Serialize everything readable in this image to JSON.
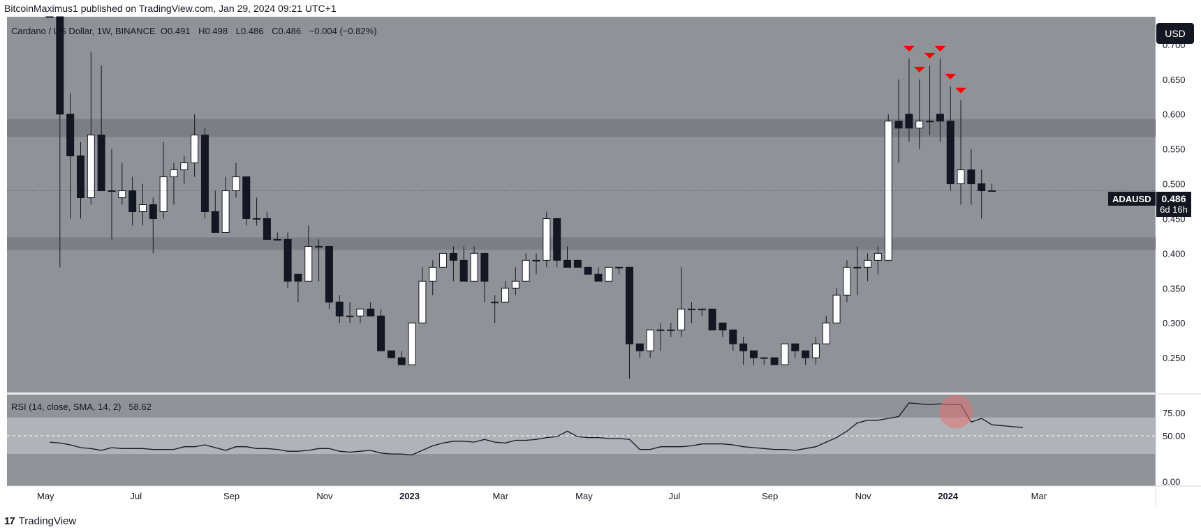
{
  "header": {
    "published_by": "BitcoinMaximus1 published on TradingView.com, Jan 29, 2024 09:21 UTC+1"
  },
  "legend": {
    "symbol": "Cardano / US Dollar, 1W, BINANCE",
    "o_label": "O",
    "o": "0.491",
    "h_label": "H",
    "h": "0.498",
    "l_label": "L",
    "l": "0.486",
    "c_label": "C",
    "c": "0.486",
    "change": "−0.004 (−0.82%)"
  },
  "rsi_legend": {
    "label": "RSI (14, close, SMA, 14, 2)",
    "value": "58.62"
  },
  "currency": "USD",
  "ticker": "ADAUSD",
  "last_price": "0.486",
  "countdown": "6d 16h",
  "footer": {
    "brand": "TradingView",
    "logo": "17"
  },
  "colors": {
    "background": "#ffffff",
    "plot_bg": "#8f9297",
    "zone": "#7b7e84",
    "bull": "#ffffff",
    "bear": "#131722",
    "marker": "#ff0000",
    "rsi_line": "#131722",
    "rsi_band": "#b0b3b8"
  },
  "chart_data": [
    {
      "type": "candlestick",
      "title": "Cardano / US Dollar, 1W, BINANCE",
      "ylabel": "USD",
      "ylim": [
        0.2,
        0.74
      ],
      "y_ticks": [
        0.25,
        0.3,
        0.35,
        0.4,
        0.45,
        0.5,
        0.55,
        0.6,
        0.65,
        0.7
      ],
      "y_tick_labels": [
        "0.250",
        "0.300",
        "0.350",
        "0.400",
        "0.450",
        "0.500",
        "0.550",
        "0.600",
        "0.650",
        "0.700"
      ],
      "x_tick_labels": [
        "May",
        "Jul",
        "Sep",
        "Nov",
        "2023",
        "Mar",
        "May",
        "Jul",
        "Sep",
        "Nov",
        "2024",
        "Mar"
      ],
      "x_tick_weeks": [
        0,
        9,
        18,
        27,
        35,
        44,
        52,
        61,
        70,
        79,
        87,
        96
      ],
      "horizontal_zones": [
        [
          0.567,
          0.593
        ],
        [
          0.405,
          0.423
        ]
      ],
      "bearish_markers_weeks": [
        83,
        84,
        85,
        86,
        87,
        88
      ],
      "candles": [
        {
          "o": 0.81,
          "h": 0.86,
          "l": 0.74,
          "c": 0.75
        },
        {
          "o": 0.75,
          "h": 0.79,
          "l": 0.38,
          "c": 0.6
        },
        {
          "o": 0.6,
          "h": 0.63,
          "l": 0.45,
          "c": 0.54
        },
        {
          "o": 0.54,
          "h": 0.56,
          "l": 0.45,
          "c": 0.48
        },
        {
          "o": 0.48,
          "h": 0.69,
          "l": 0.47,
          "c": 0.57
        },
        {
          "o": 0.57,
          "h": 0.67,
          "l": 0.49,
          "c": 0.49
        },
        {
          "o": 0.49,
          "h": 0.55,
          "l": 0.42,
          "c": 0.49
        },
        {
          "o": 0.48,
          "h": 0.53,
          "l": 0.47,
          "c": 0.49
        },
        {
          "o": 0.49,
          "h": 0.51,
          "l": 0.44,
          "c": 0.46
        },
        {
          "o": 0.46,
          "h": 0.5,
          "l": 0.44,
          "c": 0.47
        },
        {
          "o": 0.47,
          "h": 0.48,
          "l": 0.4,
          "c": 0.45
        },
        {
          "o": 0.46,
          "h": 0.56,
          "l": 0.45,
          "c": 0.51
        },
        {
          "o": 0.51,
          "h": 0.53,
          "l": 0.47,
          "c": 0.52
        },
        {
          "o": 0.52,
          "h": 0.54,
          "l": 0.5,
          "c": 0.53
        },
        {
          "o": 0.53,
          "h": 0.6,
          "l": 0.51,
          "c": 0.57
        },
        {
          "o": 0.57,
          "h": 0.58,
          "l": 0.45,
          "c": 0.46
        },
        {
          "o": 0.46,
          "h": 0.49,
          "l": 0.43,
          "c": 0.43
        },
        {
          "o": 0.43,
          "h": 0.51,
          "l": 0.43,
          "c": 0.49
        },
        {
          "o": 0.49,
          "h": 0.53,
          "l": 0.48,
          "c": 0.51
        },
        {
          "o": 0.51,
          "h": 0.51,
          "l": 0.44,
          "c": 0.45
        },
        {
          "o": 0.45,
          "h": 0.48,
          "l": 0.44,
          "c": 0.45
        },
        {
          "o": 0.45,
          "h": 0.46,
          "l": 0.42,
          "c": 0.42
        },
        {
          "o": 0.42,
          "h": 0.43,
          "l": 0.42,
          "c": 0.42
        },
        {
          "o": 0.42,
          "h": 0.43,
          "l": 0.35,
          "c": 0.36
        },
        {
          "o": 0.37,
          "h": 0.37,
          "l": 0.33,
          "c": 0.36
        },
        {
          "o": 0.36,
          "h": 0.44,
          "l": 0.36,
          "c": 0.41
        },
        {
          "o": 0.41,
          "h": 0.42,
          "l": 0.36,
          "c": 0.41
        },
        {
          "o": 0.41,
          "h": 0.41,
          "l": 0.32,
          "c": 0.33
        },
        {
          "o": 0.33,
          "h": 0.34,
          "l": 0.3,
          "c": 0.31
        },
        {
          "o": 0.31,
          "h": 0.33,
          "l": 0.3,
          "c": 0.31
        },
        {
          "o": 0.31,
          "h": 0.32,
          "l": 0.3,
          "c": 0.32
        },
        {
          "o": 0.32,
          "h": 0.33,
          "l": 0.31,
          "c": 0.31
        },
        {
          "o": 0.31,
          "h": 0.32,
          "l": 0.26,
          "c": 0.26
        },
        {
          "o": 0.26,
          "h": 0.26,
          "l": 0.25,
          "c": 0.25
        },
        {
          "o": 0.25,
          "h": 0.26,
          "l": 0.24,
          "c": 0.24
        },
        {
          "o": 0.24,
          "h": 0.3,
          "l": 0.24,
          "c": 0.3
        },
        {
          "o": 0.3,
          "h": 0.38,
          "l": 0.3,
          "c": 0.36
        },
        {
          "o": 0.36,
          "h": 0.39,
          "l": 0.34,
          "c": 0.38
        },
        {
          "o": 0.38,
          "h": 0.4,
          "l": 0.38,
          "c": 0.4
        },
        {
          "o": 0.4,
          "h": 0.41,
          "l": 0.36,
          "c": 0.39
        },
        {
          "o": 0.39,
          "h": 0.41,
          "l": 0.36,
          "c": 0.36
        },
        {
          "o": 0.36,
          "h": 0.41,
          "l": 0.36,
          "c": 0.4
        },
        {
          "o": 0.4,
          "h": 0.4,
          "l": 0.33,
          "c": 0.36
        },
        {
          "o": 0.33,
          "h": 0.34,
          "l": 0.3,
          "c": 0.33
        },
        {
          "o": 0.33,
          "h": 0.36,
          "l": 0.33,
          "c": 0.35
        },
        {
          "o": 0.35,
          "h": 0.38,
          "l": 0.34,
          "c": 0.36
        },
        {
          "o": 0.36,
          "h": 0.4,
          "l": 0.36,
          "c": 0.39
        },
        {
          "o": 0.39,
          "h": 0.4,
          "l": 0.37,
          "c": 0.39
        },
        {
          "o": 0.39,
          "h": 0.46,
          "l": 0.38,
          "c": 0.45
        },
        {
          "o": 0.45,
          "h": 0.45,
          "l": 0.38,
          "c": 0.39
        },
        {
          "o": 0.39,
          "h": 0.41,
          "l": 0.38,
          "c": 0.38
        },
        {
          "o": 0.39,
          "h": 0.39,
          "l": 0.38,
          "c": 0.38
        },
        {
          "o": 0.38,
          "h": 0.38,
          "l": 0.37,
          "c": 0.37
        },
        {
          "o": 0.37,
          "h": 0.38,
          "l": 0.36,
          "c": 0.36
        },
        {
          "o": 0.36,
          "h": 0.38,
          "l": 0.36,
          "c": 0.38
        },
        {
          "o": 0.38,
          "h": 0.38,
          "l": 0.37,
          "c": 0.38
        },
        {
          "o": 0.38,
          "h": 0.38,
          "l": 0.22,
          "c": 0.27
        },
        {
          "o": 0.27,
          "h": 0.27,
          "l": 0.25,
          "c": 0.26
        },
        {
          "o": 0.26,
          "h": 0.29,
          "l": 0.25,
          "c": 0.29
        },
        {
          "o": 0.29,
          "h": 0.3,
          "l": 0.26,
          "c": 0.29
        },
        {
          "o": 0.29,
          "h": 0.3,
          "l": 0.28,
          "c": 0.29
        },
        {
          "o": 0.29,
          "h": 0.38,
          "l": 0.28,
          "c": 0.32
        },
        {
          "o": 0.32,
          "h": 0.33,
          "l": 0.3,
          "c": 0.32
        },
        {
          "o": 0.32,
          "h": 0.32,
          "l": 0.31,
          "c": 0.32
        },
        {
          "o": 0.32,
          "h": 0.32,
          "l": 0.29,
          "c": 0.29
        },
        {
          "o": 0.3,
          "h": 0.3,
          "l": 0.28,
          "c": 0.29
        },
        {
          "o": 0.29,
          "h": 0.29,
          "l": 0.26,
          "c": 0.27
        },
        {
          "o": 0.27,
          "h": 0.28,
          "l": 0.24,
          "c": 0.26
        },
        {
          "o": 0.26,
          "h": 0.26,
          "l": 0.24,
          "c": 0.25
        },
        {
          "o": 0.25,
          "h": 0.25,
          "l": 0.24,
          "c": 0.25
        },
        {
          "o": 0.25,
          "h": 0.25,
          "l": 0.24,
          "c": 0.24
        },
        {
          "o": 0.24,
          "h": 0.27,
          "l": 0.24,
          "c": 0.27
        },
        {
          "o": 0.27,
          "h": 0.27,
          "l": 0.25,
          "c": 0.26
        },
        {
          "o": 0.26,
          "h": 0.26,
          "l": 0.24,
          "c": 0.25
        },
        {
          "o": 0.25,
          "h": 0.28,
          "l": 0.24,
          "c": 0.27
        },
        {
          "o": 0.27,
          "h": 0.31,
          "l": 0.27,
          "c": 0.3
        },
        {
          "o": 0.3,
          "h": 0.35,
          "l": 0.3,
          "c": 0.34
        },
        {
          "o": 0.34,
          "h": 0.39,
          "l": 0.33,
          "c": 0.38
        },
        {
          "o": 0.38,
          "h": 0.41,
          "l": 0.34,
          "c": 0.38
        },
        {
          "o": 0.38,
          "h": 0.4,
          "l": 0.36,
          "c": 0.39
        },
        {
          "o": 0.39,
          "h": 0.41,
          "l": 0.37,
          "c": 0.4
        },
        {
          "o": 0.39,
          "h": 0.6,
          "l": 0.39,
          "c": 0.59
        },
        {
          "o": 0.59,
          "h": 0.65,
          "l": 0.53,
          "c": 0.58
        },
        {
          "o": 0.6,
          "h": 0.68,
          "l": 0.56,
          "c": 0.58
        },
        {
          "o": 0.58,
          "h": 0.65,
          "l": 0.55,
          "c": 0.59
        },
        {
          "o": 0.59,
          "h": 0.67,
          "l": 0.57,
          "c": 0.59
        },
        {
          "o": 0.6,
          "h": 0.68,
          "l": 0.56,
          "c": 0.59
        },
        {
          "o": 0.59,
          "h": 0.64,
          "l": 0.49,
          "c": 0.5
        },
        {
          "o": 0.5,
          "h": 0.62,
          "l": 0.47,
          "c": 0.52
        },
        {
          "o": 0.52,
          "h": 0.55,
          "l": 0.47,
          "c": 0.5
        },
        {
          "o": 0.5,
          "h": 0.52,
          "l": 0.45,
          "c": 0.49
        },
        {
          "o": 0.49,
          "h": 0.5,
          "l": 0.49,
          "c": 0.49
        }
      ]
    },
    {
      "type": "line",
      "title": "RSI (14, close, SMA, 14, 2)",
      "ylim": [
        -5,
        95
      ],
      "y_ticks": [
        0,
        25,
        50,
        75
      ],
      "y_tick_labels": [
        "0.00",
        "",
        "50.00",
        "75.00"
      ],
      "band": [
        30,
        70
      ],
      "midline": 50,
      "highlight_week": 87,
      "values": [
        43,
        42,
        40,
        37,
        36,
        34,
        37,
        36,
        36,
        36,
        35,
        35,
        35,
        38,
        38,
        40,
        37,
        34,
        38,
        38,
        36,
        36,
        35,
        33,
        33,
        34,
        36,
        36,
        33,
        32,
        33,
        34,
        31,
        30,
        30,
        29,
        34,
        39,
        42,
        44,
        44,
        43,
        46,
        43,
        42,
        45,
        45,
        46,
        48,
        49,
        55,
        49,
        48,
        48,
        47,
        47,
        46,
        35,
        35,
        38,
        38,
        38,
        39,
        41,
        41,
        41,
        40,
        38,
        37,
        36,
        35,
        35,
        34,
        36,
        38,
        43,
        48,
        55,
        64,
        67,
        67,
        69,
        71,
        86,
        85,
        84,
        85,
        84,
        84,
        65,
        69,
        62,
        61,
        60,
        59
      ]
    }
  ]
}
